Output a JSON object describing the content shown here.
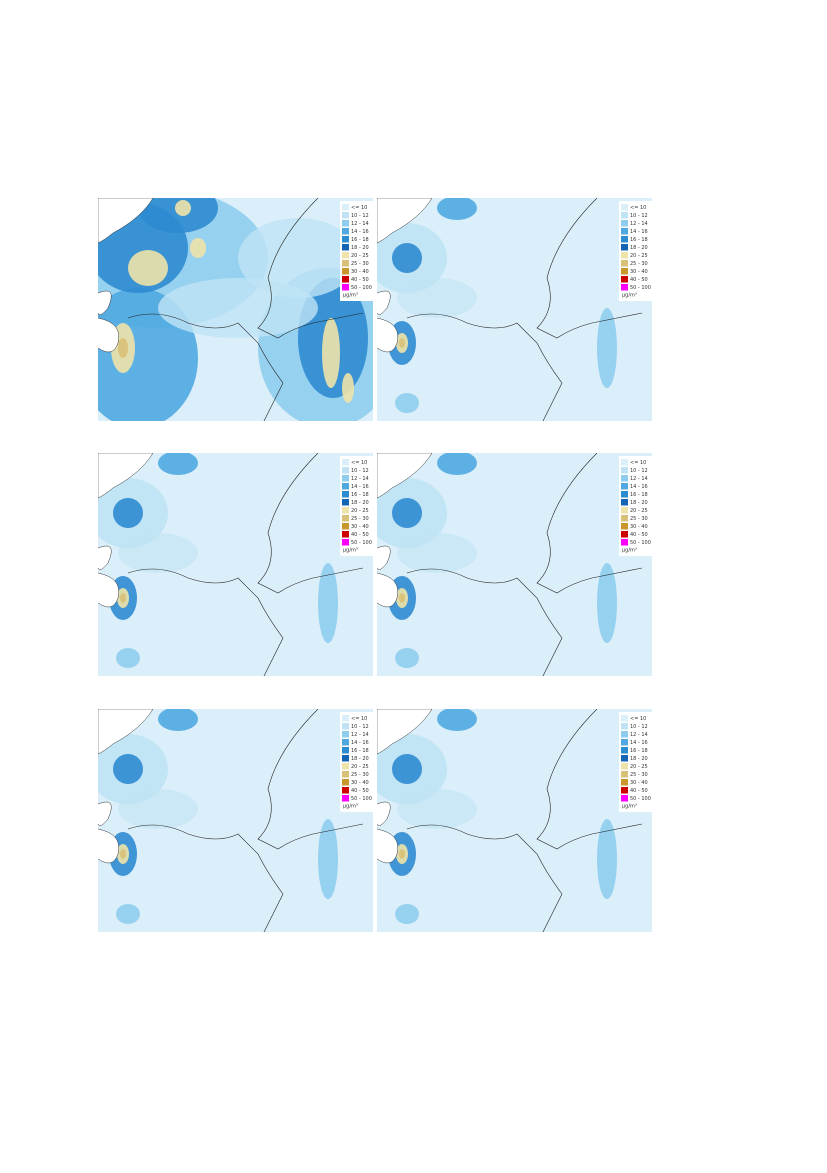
{
  "legend": {
    "items": [
      {
        "label": "<= 10",
        "color": "#dbeffa"
      },
      {
        "label": "10 - 12",
        "color": "#bfe3f5"
      },
      {
        "label": "12 - 14",
        "color": "#8fcdee"
      },
      {
        "label": "14 - 16",
        "color": "#4fa9e0"
      },
      {
        "label": "16 - 18",
        "color": "#2d8bd0"
      },
      {
        "label": "18 - 20",
        "color": "#1565b5"
      },
      {
        "label": "20 - 25",
        "color": "#eee3a8"
      },
      {
        "label": "25 - 30",
        "color": "#d8c078"
      },
      {
        "label": "30 - 40",
        "color": "#c8962a"
      },
      {
        "label": "40 - 50",
        "color": "#cc0000"
      },
      {
        "label": "50 - 100",
        "color": "#ff00ff"
      }
    ],
    "unit": "μg/m³"
  }
}
